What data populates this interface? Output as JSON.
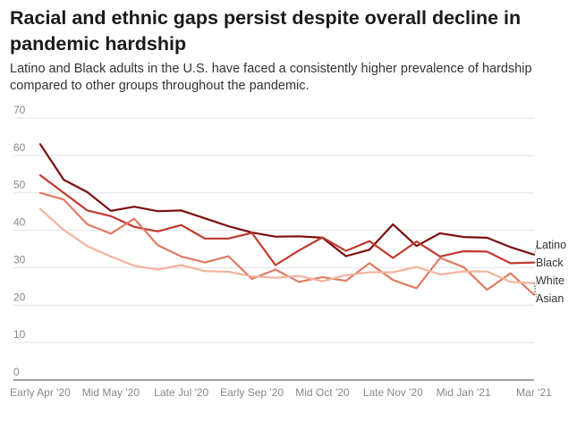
{
  "title": "Racial and ethnic gaps persist despite overall decline in pandemic hardship",
  "subtitle": "Latino and Black adults in the U.S. have faced a consistently higher prevalence of hardship compared to other groups throughout the pandemic.",
  "chart_data": {
    "type": "line",
    "title": "Racial and ethnic gaps persist despite overall decline in pandemic hardship",
    "xlabel": "",
    "ylabel": "",
    "ylim": [
      0,
      70
    ],
    "yticks": [
      0,
      10,
      20,
      30,
      40,
      50,
      60,
      70
    ],
    "x_tick_labels": [
      "Early Apr '20",
      "Mid May '20",
      "Late Jul '20",
      "Early Sep '20",
      "Mid Oct '20",
      "Late Nov '20",
      "Mid Jan '21",
      "Mar '21"
    ],
    "grid": true,
    "series": [
      {
        "name": "Latino",
        "color": "#7b0d0d",
        "values": [
          63,
          53.5,
          50.2,
          45.2,
          46.3,
          45.1,
          45.3,
          43.2,
          41.1,
          39.4,
          38.3,
          38.4,
          38.0,
          33.1,
          34.8,
          41.6,
          35.8,
          39.2,
          38.2,
          38.0,
          35.5,
          33.5
        ]
      },
      {
        "name": "Black",
        "color": "#c0392b",
        "values": [
          54.7,
          50.0,
          45.3,
          43.8,
          40.9,
          39.7,
          41.4,
          37.8,
          37.8,
          39.3,
          30.7,
          34.6,
          38.1,
          34.5,
          37.1,
          32.6,
          37.0,
          33.0,
          34.4,
          34.3,
          31.2,
          31.4
        ]
      },
      {
        "name": "White",
        "color": "#e07b62",
        "values": [
          50.0,
          48.2,
          41.6,
          39.1,
          43.1,
          36.0,
          33.0,
          31.4,
          33.1,
          27.0,
          29.5,
          26.2,
          27.5,
          26.5,
          31.2,
          26.7,
          24.5,
          32.6,
          30.2,
          24.1,
          28.5,
          22.8
        ]
      },
      {
        "name": "Asian",
        "color": "#f4b39d",
        "values": [
          45.7,
          40.1,
          35.8,
          33.0,
          30.5,
          29.5,
          30.7,
          29.1,
          28.9,
          27.7,
          27.3,
          27.8,
          26.4,
          28.0,
          28.8,
          28.8,
          30.2,
          28.2,
          29.0,
          29.0,
          26.2,
          25.9
        ]
      }
    ]
  }
}
